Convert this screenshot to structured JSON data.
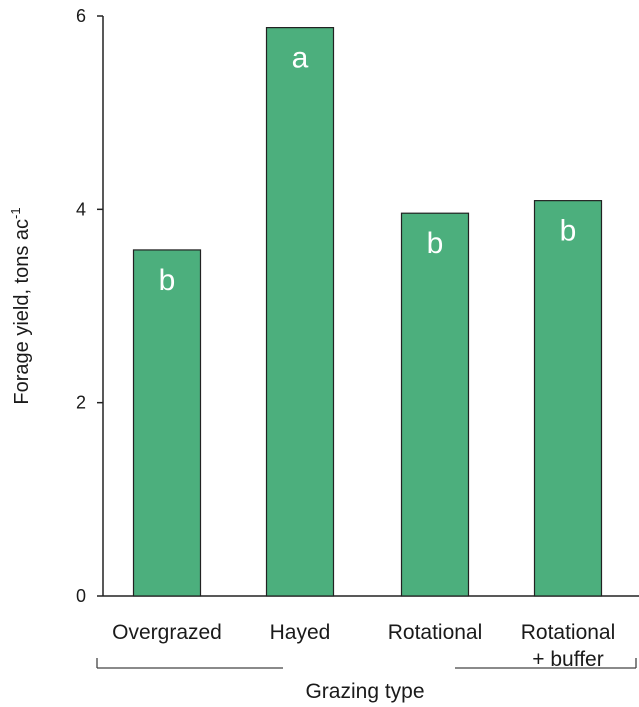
{
  "chart_data": {
    "type": "bar",
    "categories": [
      [
        "Overgrazed"
      ],
      [
        "Hayed"
      ],
      [
        "Rotational"
      ],
      [
        "Rotational",
        "+ buffer"
      ]
    ],
    "values": [
      3.58,
      5.88,
      3.96,
      4.09
    ],
    "bar_labels": [
      "b",
      "a",
      "b",
      "b"
    ],
    "ylabel": "Forage yield, tons ac",
    "ylabel_superscript": "-1",
    "xlabel": "Grazing type",
    "ylim": [
      0,
      6
    ],
    "yticks": [
      "0",
      "2",
      "4",
      "6"
    ],
    "grid": false,
    "colors": {
      "bar": "#4caf7d",
      "bar_label": "#ffffff",
      "axis": "#222222"
    }
  }
}
